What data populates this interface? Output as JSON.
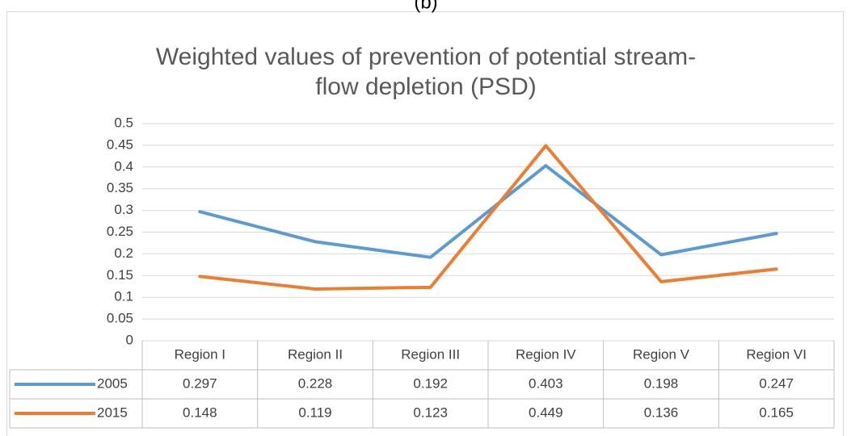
{
  "label": "(b)",
  "chart_data": {
    "type": "line",
    "title_lines": [
      "Weighted values of prevention of potential stream-",
      "flow depletion (PSD)"
    ],
    "categories": [
      "Region I",
      "Region II",
      "Region III",
      "Region IV",
      "Region V",
      "Region VI"
    ],
    "series": [
      {
        "name": "2005",
        "color": "#5b9bd5",
        "values": [
          0.297,
          0.228,
          0.192,
          0.403,
          0.198,
          0.247
        ]
      },
      {
        "name": "2015",
        "color": "#ed7d31",
        "values": [
          0.148,
          0.119,
          0.123,
          0.449,
          0.136,
          0.165
        ]
      }
    ],
    "ylim": [
      0,
      0.5
    ],
    "yticks": [
      0,
      0.05,
      0.1,
      0.15,
      0.2,
      0.25,
      0.3,
      0.35,
      0.4,
      0.45,
      0.5
    ],
    "grid": true,
    "data_table": true
  }
}
